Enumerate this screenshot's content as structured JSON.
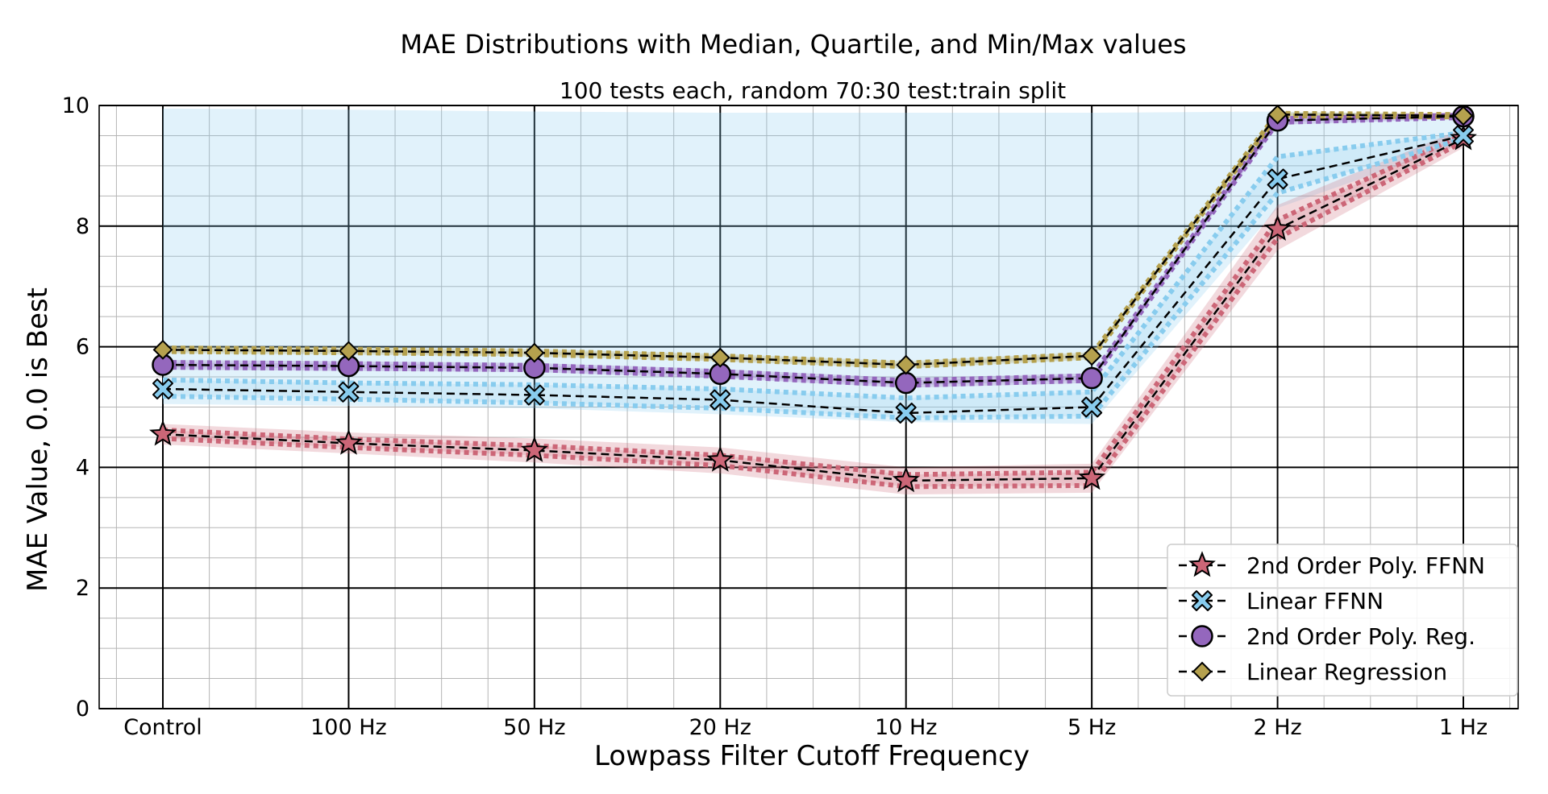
{
  "chart_data": {
    "type": "line",
    "title": "MAE Distributions with Median, Quartile, and Min/Max values",
    "subtitle": "100 tests each, random 70:30 test:train split",
    "xlabel": "Lowpass Filter Cutoff Frequency",
    "ylabel": "MAE Value, 0.0 is Best",
    "categories": [
      "Control",
      "100 Hz",
      "50 Hz",
      "20 Hz",
      "10 Hz",
      "5 Hz",
      "2 Hz",
      "1 Hz"
    ],
    "ylim": [
      0,
      10
    ],
    "yticks": [
      "0",
      "2",
      "4",
      "6",
      "8",
      "10"
    ],
    "grid": "major and minor",
    "legend_position": "lower-right",
    "series": [
      {
        "name": "2nd Order Poly. FFNN",
        "color": "#cc6677",
        "marker": "star",
        "median": [
          4.55,
          4.4,
          4.28,
          4.12,
          3.78,
          3.82,
          7.95,
          9.45
        ],
        "q1": [
          4.48,
          4.33,
          4.2,
          4.03,
          3.68,
          3.7,
          7.8,
          9.4
        ],
        "q3": [
          4.62,
          4.47,
          4.36,
          4.2,
          3.88,
          3.92,
          8.1,
          9.52
        ],
        "min": [
          4.38,
          4.23,
          4.08,
          3.9,
          3.55,
          3.58,
          7.6,
          9.3
        ],
        "max": [
          4.72,
          4.58,
          4.48,
          4.33,
          4.0,
          4.06,
          8.35,
          9.62
        ]
      },
      {
        "name": "Linear FFNN",
        "color": "#88ccee",
        "marker": "x",
        "median": [
          5.3,
          5.25,
          5.2,
          5.12,
          4.9,
          5.0,
          8.78,
          9.5
        ],
        "q1": [
          5.18,
          5.13,
          5.07,
          4.98,
          4.82,
          4.85,
          8.55,
          9.45
        ],
        "q3": [
          5.45,
          5.4,
          5.37,
          5.3,
          5.15,
          5.25,
          9.15,
          9.55
        ],
        "min": [
          5.05,
          5.02,
          4.98,
          4.88,
          4.75,
          4.72,
          8.3,
          9.38
        ],
        "max": [
          9.95,
          9.93,
          9.9,
          9.88,
          9.88,
          9.88,
          9.9,
          9.85
        ]
      },
      {
        "name": "2nd Order Poly. Reg.",
        "color": "#9467bd",
        "marker": "circle",
        "median": [
          5.7,
          5.68,
          5.65,
          5.55,
          5.4,
          5.48,
          9.75,
          9.82
        ],
        "q1": [
          5.66,
          5.64,
          5.62,
          5.51,
          5.36,
          5.44,
          9.72,
          9.8
        ],
        "q3": [
          5.74,
          5.72,
          5.69,
          5.59,
          5.44,
          5.52,
          9.78,
          9.84
        ],
        "min": [
          5.62,
          5.6,
          5.58,
          5.48,
          5.32,
          5.4,
          9.68,
          9.78
        ],
        "max": [
          5.78,
          5.76,
          5.73,
          5.63,
          5.48,
          5.56,
          9.82,
          9.86
        ]
      },
      {
        "name": "Linear Regression",
        "color": "#b5a14e",
        "marker": "diamond",
        "median": [
          5.95,
          5.93,
          5.9,
          5.82,
          5.7,
          5.85,
          9.85,
          9.83
        ],
        "q1": [
          5.92,
          5.9,
          5.87,
          5.79,
          5.67,
          5.82,
          9.83,
          9.81
        ],
        "q3": [
          5.98,
          5.96,
          5.93,
          5.85,
          5.73,
          5.88,
          9.87,
          9.85
        ],
        "min": [
          5.89,
          5.87,
          5.84,
          5.76,
          5.64,
          5.79,
          9.8,
          9.79
        ],
        "max": [
          6.01,
          5.99,
          5.96,
          5.88,
          5.76,
          5.91,
          9.89,
          9.87
        ]
      }
    ]
  }
}
